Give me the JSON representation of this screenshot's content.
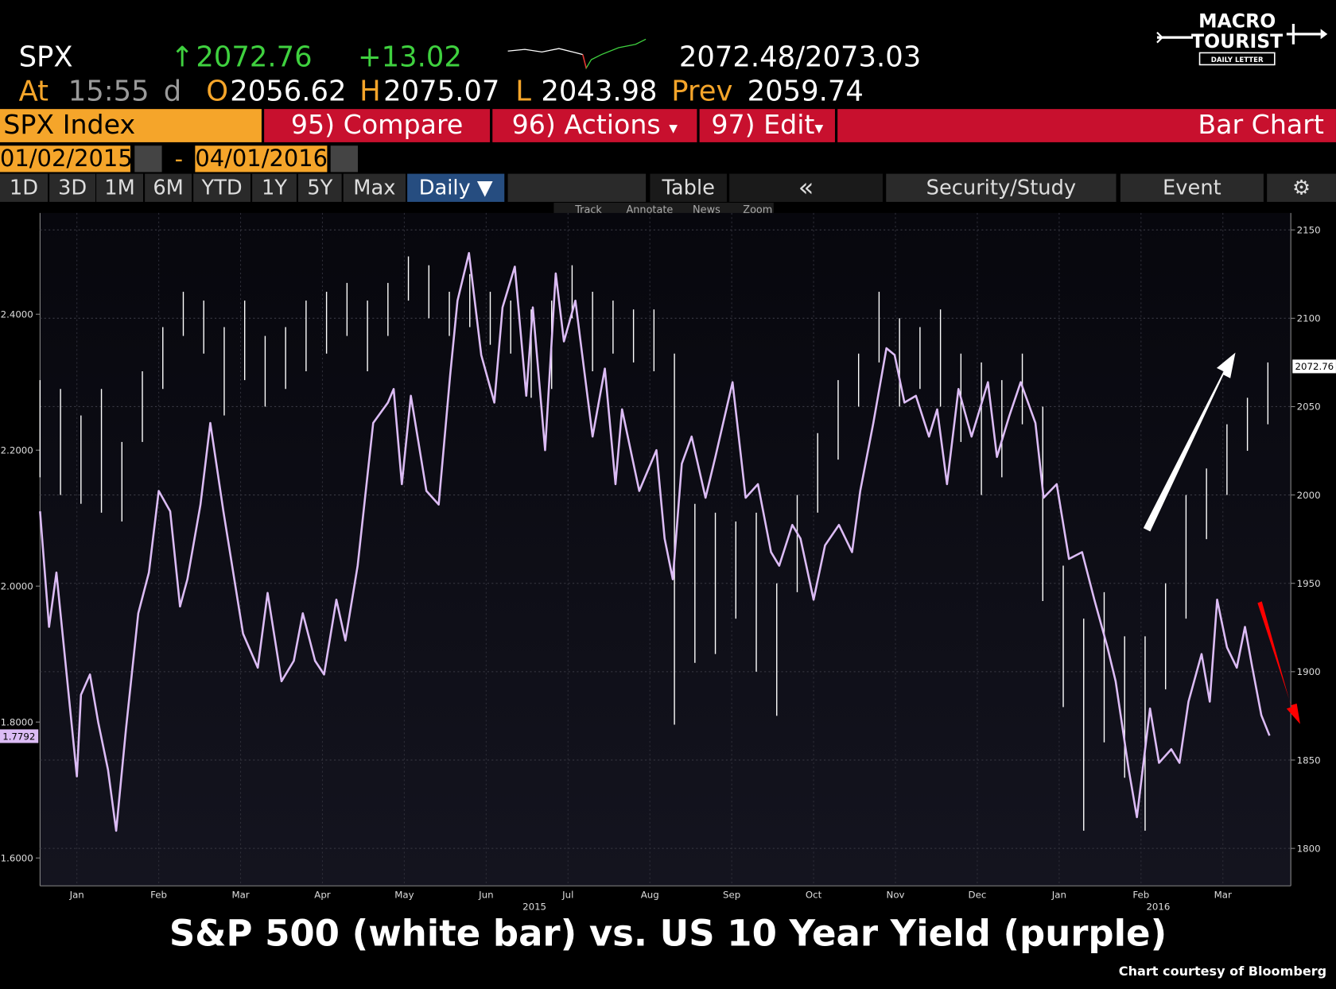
{
  "header": {
    "ticker": "SPX",
    "up_arrow": "↑",
    "price": "2072.76",
    "change": "+13.02",
    "bid_ask": "2072.48/2073.03",
    "at": "At",
    "time": "15:55",
    "time_flag": "d",
    "open_label": "O",
    "open": "2056.62",
    "high_label": "H",
    "high": "2075.07",
    "low_label": "L",
    "low": "2043.98",
    "prev_label": "Prev",
    "prev": "2059.74"
  },
  "logo": {
    "line1": "MACRO",
    "line2": "TOURIST",
    "line3": "DAILY LETTER"
  },
  "toolbar": {
    "security": "SPX Index",
    "compare": "95) Compare",
    "actions": "96) Actions",
    "edit": "97) Edit",
    "dropdown": "▾",
    "view": "Bar Chart",
    "start_date": "01/02/2015",
    "date_sep": "-",
    "end_date": "04/01/2016",
    "ranges": [
      "1D",
      "3D",
      "1M",
      "6M",
      "YTD",
      "1Y",
      "5Y",
      "Max"
    ],
    "period": "Daily ▼",
    "table": "Table",
    "collapse": "«",
    "study": "Security/Study",
    "event": "Event",
    "tools": [
      "Track",
      "Annotate",
      "News",
      "Zoom"
    ]
  },
  "chart_data": {
    "type": "line",
    "xlim": [
      0.05,
      15.33
    ],
    "xticks": [
      {
        "value": 0.5,
        "label": "Jan"
      },
      {
        "value": 1.5,
        "label": "Feb"
      },
      {
        "value": 2.5,
        "label": "Mar"
      },
      {
        "value": 3.5,
        "label": "Apr"
      },
      {
        "value": 4.5,
        "label": "May"
      },
      {
        "value": 5.5,
        "label": "Jun"
      },
      {
        "value": 6.5,
        "label": "Jul"
      },
      {
        "value": 7.5,
        "label": "Aug"
      },
      {
        "value": 8.5,
        "label": "Sep"
      },
      {
        "value": 9.5,
        "label": "Oct"
      },
      {
        "value": 10.5,
        "label": "Nov"
      },
      {
        "value": 11.5,
        "label": "Dec"
      },
      {
        "value": 12.5,
        "label": "Jan"
      },
      {
        "value": 13.5,
        "label": "Feb"
      },
      {
        "value": 14.5,
        "label": "Mar"
      }
    ],
    "year_labels": [
      {
        "value": 6.09,
        "label": "2015"
      },
      {
        "value": 13.71,
        "label": "2016"
      }
    ],
    "ylim": [
      1.559,
      2.549
    ],
    "yticks": [
      {
        "value": 1.6,
        "label": "1.6000"
      },
      {
        "value": 1.8,
        "label": "1.8000"
      },
      {
        "value": 2.0,
        "label": "2.0000"
      },
      {
        "value": 2.2,
        "label": "2.2000"
      },
      {
        "value": 2.4,
        "label": "2.4000"
      }
    ],
    "y2lim": [
      1778.8,
      2159.6
    ],
    "y2ticks": [
      1800,
      1850,
      1900,
      1950,
      2000,
      2050,
      2100,
      2150
    ],
    "grid": true,
    "series": [
      {
        "type": "hilo",
        "axis": "y2",
        "color": "#ffffff",
        "last": 2072.76,
        "x": [
          0.05,
          0.3,
          0.55,
          0.8,
          1.05,
          1.3,
          1.55,
          1.8,
          2.05,
          2.3,
          2.55,
          2.8,
          3.05,
          3.3,
          3.55,
          3.8,
          4.05,
          4.3,
          4.55,
          4.8,
          5.05,
          5.3,
          5.55,
          5.8,
          6.05,
          6.3,
          6.55,
          6.8,
          7.05,
          7.3,
          7.55,
          7.8,
          8.05,
          8.3,
          8.55,
          8.8,
          9.05,
          9.3,
          9.55,
          9.8,
          10.05,
          10.3,
          10.55,
          10.8,
          11.05,
          11.3,
          11.55,
          11.8,
          12.05,
          12.3,
          12.55,
          12.8,
          13.05,
          13.3,
          13.55,
          13.8,
          14.05,
          14.3,
          14.55,
          14.8,
          15.05
        ],
        "high": [
          2065,
          2060,
          2045,
          2060,
          2030,
          2070,
          2095,
          2115,
          2110,
          2095,
          2110,
          2090,
          2095,
          2110,
          2115,
          2120,
          2110,
          2120,
          2135,
          2130,
          2115,
          2125,
          2115,
          2110,
          2105,
          2110,
          2130,
          2115,
          2110,
          2105,
          2105,
          2080,
          1995,
          1990,
          1985,
          1990,
          1950,
          2000,
          2035,
          2065,
          2080,
          2115,
          2100,
          2095,
          2105,
          2080,
          2075,
          2065,
          2080,
          2050,
          1960,
          1930,
          1945,
          1920,
          1920,
          1950,
          2000,
          2015,
          2040,
          2055,
          2075
        ],
        "low": [
          2010,
          2000,
          1995,
          1990,
          1985,
          2030,
          2060,
          2090,
          2080,
          2045,
          2065,
          2050,
          2060,
          2070,
          2080,
          2090,
          2070,
          2090,
          2110,
          2100,
          2090,
          2095,
          2085,
          2080,
          2055,
          2060,
          2100,
          2070,
          2080,
          2075,
          2070,
          1870,
          1905,
          1910,
          1930,
          1900,
          1875,
          1945,
          1990,
          2020,
          2050,
          2075,
          2050,
          2060,
          2050,
          2030,
          2000,
          2010,
          2040,
          1940,
          1880,
          1810,
          1860,
          1840,
          1810,
          1890,
          1930,
          1975,
          2000,
          2025,
          2040
        ]
      },
      {
        "type": "line",
        "color": "#dcbcf5",
        "last": 1.7792,
        "x": [
          0.05,
          0.16,
          0.25,
          0.5,
          0.55,
          0.66,
          0.76,
          0.88,
          0.98,
          1.1,
          1.25,
          1.38,
          1.5,
          1.64,
          1.76,
          1.85,
          2.01,
          2.13,
          2.29,
          2.53,
          2.71,
          2.83,
          3.0,
          3.15,
          3.26,
          3.41,
          3.52,
          3.67,
          3.78,
          3.93,
          4.12,
          4.3,
          4.37,
          4.47,
          4.58,
          4.77,
          4.92,
          5.06,
          5.15,
          5.29,
          5.44,
          5.6,
          5.7,
          5.85,
          5.99,
          6.07,
          6.22,
          6.35,
          6.45,
          6.59,
          6.8,
          6.95,
          7.08,
          7.16,
          7.37,
          7.58,
          7.68,
          7.78,
          7.89,
          8.01,
          8.18,
          8.3,
          8.51,
          8.67,
          8.82,
          8.98,
          9.08,
          9.24,
          9.34,
          9.5,
          9.64,
          9.81,
          9.97,
          10.07,
          10.23,
          10.39,
          10.49,
          10.61,
          10.75,
          10.91,
          11.01,
          11.13,
          11.27,
          11.43,
          11.63,
          11.74,
          11.89,
          12.03,
          12.21,
          12.31,
          12.47,
          12.62,
          12.78,
          12.93,
          13.09,
          13.19,
          13.35,
          13.45,
          13.61,
          13.72,
          13.87,
          13.97,
          14.08,
          14.24,
          14.34,
          14.43,
          14.55,
          14.67,
          14.77,
          14.86,
          14.97,
          15.07
        ],
        "values": [
          2.11,
          1.94,
          2.02,
          1.72,
          1.84,
          1.87,
          1.8,
          1.73,
          1.64,
          1.79,
          1.96,
          2.02,
          2.14,
          2.11,
          1.97,
          2.01,
          2.12,
          2.24,
          2.11,
          1.93,
          1.88,
          1.99,
          1.86,
          1.89,
          1.96,
          1.89,
          1.87,
          1.98,
          1.92,
          2.03,
          2.24,
          2.27,
          2.29,
          2.15,
          2.28,
          2.14,
          2.12,
          2.31,
          2.42,
          2.49,
          2.34,
          2.27,
          2.41,
          2.47,
          2.28,
          2.41,
          2.2,
          2.46,
          2.36,
          2.42,
          2.22,
          2.32,
          2.15,
          2.26,
          2.14,
          2.2,
          2.07,
          2.01,
          2.18,
          2.22,
          2.13,
          2.19,
          2.3,
          2.13,
          2.15,
          2.05,
          2.03,
          2.09,
          2.07,
          1.98,
          2.06,
          2.09,
          2.05,
          2.14,
          2.24,
          2.35,
          2.34,
          2.27,
          2.28,
          2.22,
          2.26,
          2.15,
          2.29,
          2.22,
          2.3,
          2.19,
          2.25,
          2.3,
          2.24,
          2.13,
          2.15,
          2.04,
          2.05,
          1.98,
          1.91,
          1.86,
          1.73,
          1.66,
          1.82,
          1.74,
          1.76,
          1.74,
          1.83,
          1.9,
          1.83,
          1.98,
          1.91,
          1.88,
          1.94,
          1.88,
          1.81,
          1.78
        ]
      }
    ]
  },
  "caption": "S&P 500 (white bar) vs. US 10 Year Yield (purple)",
  "credit": "Chart courtesy of Bloomberg"
}
